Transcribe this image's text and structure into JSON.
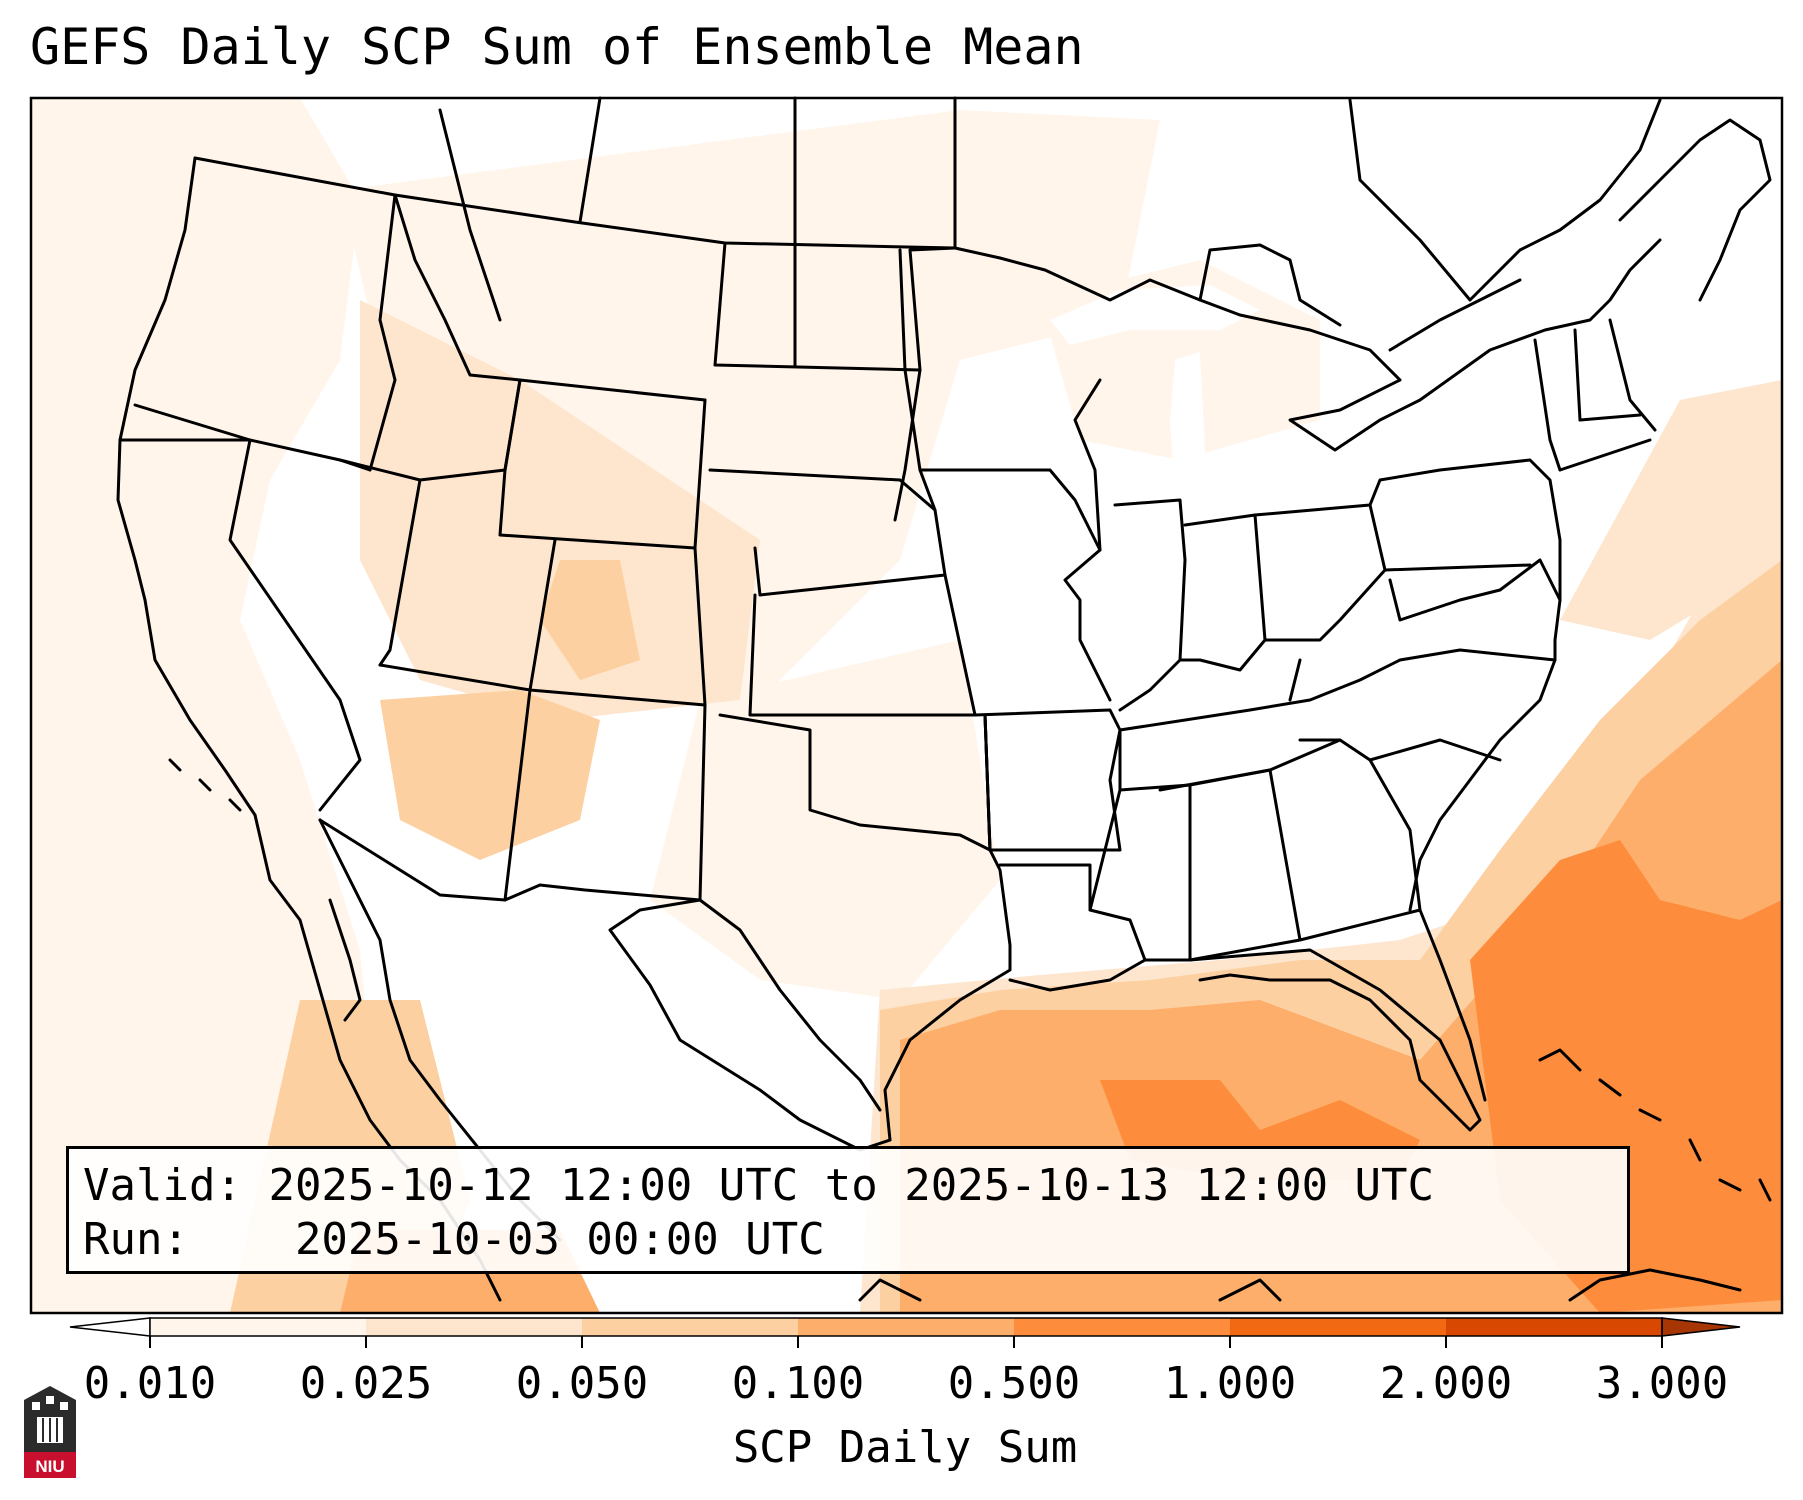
{
  "title": "GEFS Daily SCP Sum of Ensemble Mean",
  "valid_label": "Valid:",
  "valid_value": "2025-10-12 12:00 UTC to 2025-10-13 12:00 UTC",
  "run_label": "Run:",
  "run_value": "2025-10-03 00:00 UTC",
  "colorbar": {
    "label": "SCP Daily Sum",
    "ticks": [
      "0.010",
      "0.025",
      "0.050",
      "0.100",
      "0.500",
      "1.000",
      "2.000",
      "3.000"
    ],
    "colors": [
      "#fff5eb",
      "#fee6ce",
      "#fdd0a2",
      "#fdae6b",
      "#fd8d3c",
      "#f16913",
      "#d94801",
      "#a63603"
    ],
    "under_color": "#ffffff",
    "over_color": "#a63603"
  },
  "logo_text": "NIU",
  "map": {
    "projection": "Lambert Conformal Conus",
    "fill_scheme": "Oranges"
  }
}
